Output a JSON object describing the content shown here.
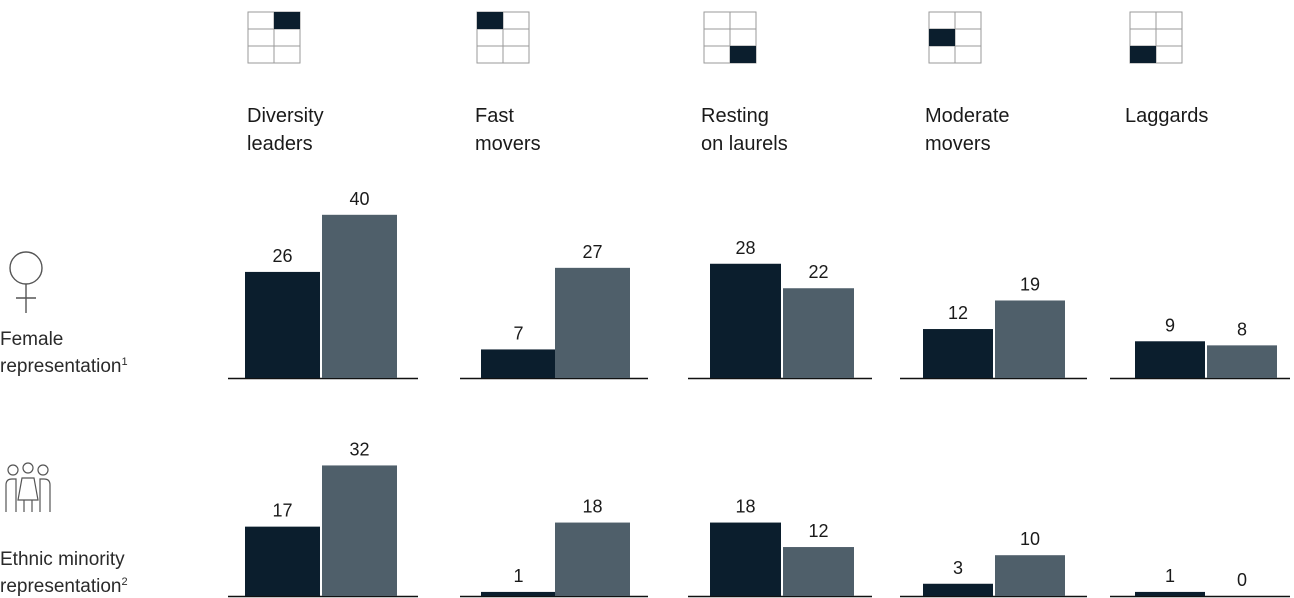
{
  "colors": {
    "dark": "#0b1e2d",
    "grey": "#4f5f6a",
    "axis": "#111111",
    "icon_line": "#9a9a9a"
  },
  "columns": [
    {
      "line1": "Diversity",
      "line2": "leaders",
      "highlight": "top-right"
    },
    {
      "line1": "Fast",
      "line2": "movers",
      "highlight": "top-left"
    },
    {
      "line1": "Resting",
      "line2": "on laurels",
      "highlight": "bottom-right"
    },
    {
      "line1": "Moderate",
      "line2": "movers",
      "highlight": "middle-left"
    },
    {
      "line1": "Laggards",
      "line2": "",
      "highlight": "bottom-left"
    }
  ],
  "rows": [
    {
      "label": "Female",
      "label2": "representation",
      "footnote": "1",
      "icon": "female-symbol-icon"
    },
    {
      "label": "Ethnic minority",
      "label2": "representation",
      "footnote": "2",
      "icon": "people-group-icon"
    }
  ],
  "chart_data": {
    "type": "bar",
    "categories": [
      "Diversity leaders",
      "Fast movers",
      "Resting on laurels",
      "Moderate movers",
      "Laggards"
    ],
    "panels": [
      {
        "row": "Female representation",
        "series": [
          {
            "values": [
              26,
              7,
              28,
              12,
              9
            ]
          },
          {
            "values": [
              40,
              27,
              22,
              19,
              8
            ]
          }
        ]
      },
      {
        "row": "Ethnic minority representation",
        "series": [
          {
            "values": [
              17,
              1,
              18,
              3,
              1
            ]
          },
          {
            "values": [
              32,
              18,
              12,
              10,
              0
            ]
          }
        ]
      }
    ]
  }
}
